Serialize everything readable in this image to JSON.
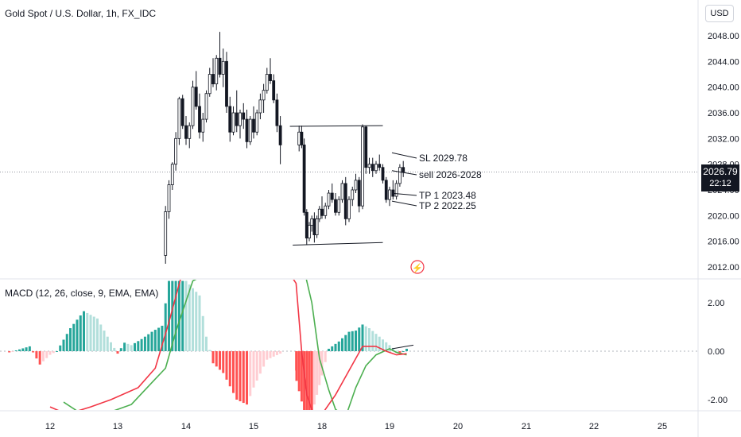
{
  "header": {
    "symbol_title": "Gold Spot / U.S. Dollar, 1h, FX_IDC",
    "currency": "USD",
    "current_price": "2026.79",
    "countdown": "22:12"
  },
  "macd_indicator": {
    "label": "MACD (12, 26, close, 9, EMA, EMA)"
  },
  "chart_data": [
    {
      "type": "candlestick",
      "title": "Gold Spot / U.S. Dollar, 1h, FX_IDC",
      "y_axis_ticks": [
        "2048.00",
        "2044.00",
        "2040.00",
        "2036.00",
        "2032.00",
        "2028.00",
        "2024.00",
        "2020.00",
        "2016.00",
        "2012.00"
      ],
      "x_axis_ticks": [
        "12",
        "13",
        "14",
        "15",
        "18",
        "19",
        "20",
        "21",
        "22",
        "25"
      ],
      "ylim": [
        2010.3,
        2050.3
      ],
      "last_price": 2026.79,
      "annotations": [
        {
          "text": "SL 2029.78",
          "price": 2029.78
        },
        {
          "text": "sell 2026-2028",
          "price": 2027.0
        },
        {
          "text": "TP 1 2023.48",
          "price": 2023.48
        },
        {
          "text": "TP 2 2022.25",
          "price": 2022.25
        }
      ],
      "trendlines": [
        {
          "name": "channel-top",
          "from": {
            "x": 16.1,
            "price": 2033.9
          },
          "to": {
            "x": 18.9,
            "price": 2034.0
          }
        },
        {
          "name": "channel-bottom",
          "from": {
            "x": 16.7,
            "price": 2015.4
          },
          "to": {
            "x": 18.9,
            "price": 2015.8
          }
        }
      ],
      "ohlc_approx": [
        [
          13.7,
          2013.8,
          2021.5,
          2012.5,
          2020.6
        ],
        [
          13.75,
          2020.6,
          2025.5,
          2019.5,
          2024.8
        ],
        [
          13.8,
          2024.8,
          2028.3,
          2024.0,
          2028.0
        ],
        [
          13.85,
          2028.0,
          2033.0,
          2027.0,
          2032.0
        ],
        [
          13.9,
          2032.0,
          2038.5,
          2031.0,
          2038.2
        ],
        [
          13.95,
          2038.2,
          2038.8,
          2033.5,
          2034.0
        ],
        [
          14.0,
          2034.0,
          2035.5,
          2031.0,
          2032.0
        ],
        [
          14.05,
          2032.0,
          2034.5,
          2030.5,
          2034.0
        ],
        [
          14.1,
          2034.0,
          2041.0,
          2033.5,
          2040.0
        ],
        [
          14.15,
          2040.0,
          2042.5,
          2036.5,
          2037.0
        ],
        [
          14.2,
          2037.0,
          2039.0,
          2032.0,
          2033.0
        ],
        [
          14.25,
          2033.0,
          2036.0,
          2031.5,
          2035.0
        ],
        [
          14.3,
          2035.0,
          2039.5,
          2034.5,
          2039.0
        ],
        [
          14.35,
          2039.0,
          2043.0,
          2038.5,
          2042.0
        ],
        [
          14.4,
          2042.0,
          2044.5,
          2040.0,
          2040.5
        ],
        [
          14.45,
          2040.5,
          2045.0,
          2039.5,
          2044.5
        ],
        [
          14.5,
          2044.5,
          2048.6,
          2041.5,
          2042.0
        ],
        [
          14.55,
          2042.0,
          2046.0,
          2040.0,
          2044.0
        ],
        [
          14.6,
          2044.0,
          2045.5,
          2036.0,
          2037.0
        ],
        [
          14.65,
          2037.0,
          2038.5,
          2031.5,
          2033.0
        ],
        [
          14.7,
          2033.0,
          2037.0,
          2032.5,
          2036.0
        ],
        [
          14.75,
          2036.0,
          2039.5,
          2033.0,
          2034.0
        ],
        [
          14.8,
          2034.0,
          2036.5,
          2032.0,
          2036.0
        ],
        [
          14.85,
          2036.0,
          2037.5,
          2033.5,
          2035.0
        ],
        [
          14.9,
          2035.0,
          2036.5,
          2030.5,
          2031.5
        ],
        [
          14.95,
          2031.5,
          2035.5,
          2031.0,
          2035.0
        ],
        [
          15.0,
          2035.0,
          2037.0,
          2032.0,
          2033.0
        ],
        [
          15.05,
          2033.0,
          2036.5,
          2032.5,
          2036.0
        ],
        [
          15.1,
          2036.0,
          2039.0,
          2035.0,
          2038.0
        ],
        [
          15.15,
          2038.0,
          2040.5,
          2036.0,
          2039.5
        ],
        [
          15.2,
          2039.5,
          2043.0,
          2039.0,
          2042.0
        ],
        [
          15.25,
          2042.0,
          2044.5,
          2040.5,
          2041.0
        ],
        [
          15.3,
          2041.0,
          2042.0,
          2037.5,
          2038.0
        ],
        [
          15.35,
          2038.0,
          2039.0,
          2033.0,
          2034.0
        ],
        [
          15.4,
          2034.0,
          2035.5,
          2028.0,
          2031.0
        ],
        [
          17.55,
          2031.0,
          2034.0,
          2030.0,
          2033.0
        ],
        [
          17.6,
          2033.0,
          2034.0,
          2030.5,
          2031.0
        ],
        [
          17.65,
          2031.0,
          2032.0,
          2020.0,
          2020.5
        ],
        [
          17.7,
          2020.5,
          2021.0,
          2015.4,
          2016.5
        ],
        [
          17.75,
          2016.5,
          2019.0,
          2016.0,
          2018.5
        ],
        [
          17.8,
          2018.5,
          2020.0,
          2017.5,
          2019.5
        ],
        [
          17.85,
          2019.5,
          2020.5,
          2015.8,
          2017.0
        ],
        [
          17.9,
          2017.0,
          2020.0,
          2016.5,
          2019.5
        ],
        [
          17.95,
          2019.5,
          2021.5,
          2019.0,
          2021.0
        ],
        [
          18.0,
          2021.0,
          2023.0,
          2019.5,
          2020.0
        ],
        [
          18.05,
          2020.0,
          2022.0,
          2019.5,
          2021.5
        ],
        [
          18.1,
          2021.5,
          2024.0,
          2021.0,
          2023.5
        ],
        [
          18.15,
          2023.5,
          2025.0,
          2022.0,
          2022.5
        ],
        [
          18.2,
          2022.5,
          2023.5,
          2020.0,
          2020.5
        ],
        [
          18.25,
          2020.5,
          2023.0,
          2020.0,
          2022.5
        ],
        [
          18.3,
          2022.5,
          2025.5,
          2022.0,
          2025.0
        ],
        [
          18.35,
          2025.0,
          2026.0,
          2018.5,
          2019.5
        ],
        [
          18.4,
          2019.5,
          2023.0,
          2019.0,
          2022.5
        ],
        [
          18.45,
          2022.5,
          2024.5,
          2021.5,
          2024.0
        ],
        [
          18.5,
          2024.0,
          2026.5,
          2023.5,
          2025.5
        ],
        [
          18.55,
          2025.5,
          2026.0,
          2020.5,
          2021.5
        ],
        [
          18.6,
          2021.5,
          2034.2,
          2021.0,
          2033.8
        ],
        [
          18.65,
          2033.8,
          2034.0,
          2026.5,
          2027.5
        ],
        [
          18.7,
          2027.5,
          2029.0,
          2026.5,
          2028.0
        ],
        [
          18.75,
          2028.0,
          2029.0,
          2026.0,
          2027.0
        ],
        [
          18.8,
          2027.0,
          2028.5,
          2026.5,
          2028.0
        ],
        [
          18.85,
          2028.0,
          2029.5,
          2027.0,
          2027.5
        ],
        [
          18.9,
          2027.5,
          2028.0,
          2025.0,
          2025.5
        ],
        [
          18.95,
          2025.5,
          2026.0,
          2022.0,
          2022.5
        ],
        [
          19.0,
          2022.5,
          2024.5,
          2021.5,
          2024.0
        ],
        [
          19.05,
          2024.0,
          2025.5,
          2022.5,
          2023.0
        ],
        [
          19.1,
          2023.0,
          2025.5,
          2022.5,
          2025.0
        ],
        [
          19.15,
          2025.0,
          2028.0,
          2024.5,
          2027.5
        ],
        [
          19.2,
          2027.5,
          2028.5,
          2026.0,
          2026.79
        ]
      ]
    },
    {
      "type": "macd",
      "label": "MACD (12, 26, close, 9, EMA, EMA)",
      "y_axis_ticks": [
        "2.00",
        "0.00",
        "-2.00"
      ],
      "ylim": [
        -2.6,
        2.9
      ],
      "zero_line": 0,
      "colors": {
        "macd_line": "#f23645",
        "signal_line": "#4caf50",
        "hist_up_strong": "#26a69a",
        "hist_up_weak": "#b2dfdb",
        "hist_down_strong": "#ff5252",
        "hist_down_weak": "#ffcdd2"
      },
      "histogram_key_points": [
        [
          11.4,
          -0.05
        ],
        [
          11.7,
          0.2
        ],
        [
          11.85,
          -0.55
        ],
        [
          12.0,
          -0.15
        ],
        [
          12.1,
          0.0
        ],
        [
          12.3,
          0.95
        ],
        [
          12.5,
          1.65
        ],
        [
          12.7,
          1.35
        ],
        [
          12.85,
          0.6
        ],
        [
          13.0,
          -0.1
        ],
        [
          13.1,
          0.35
        ],
        [
          13.2,
          0.25
        ],
        [
          13.35,
          0.5
        ],
        [
          13.5,
          0.8
        ],
        [
          13.65,
          1.05
        ],
        [
          13.75,
          2.9
        ],
        [
          14.0,
          2.9
        ],
        [
          14.2,
          2.3
        ],
        [
          14.3,
          0.6
        ],
        [
          14.4,
          -0.5
        ],
        [
          14.55,
          -0.9
        ],
        [
          14.75,
          -2.0
        ],
        [
          14.9,
          -2.2
        ],
        [
          15.0,
          -1.5
        ],
        [
          15.2,
          -0.35
        ],
        [
          15.4,
          -0.1
        ],
        [
          17.45,
          -0.8
        ],
        [
          17.65,
          -2.5
        ],
        [
          17.8,
          -2.6
        ],
        [
          18.0,
          -1.0
        ],
        [
          18.1,
          0.1
        ],
        [
          18.25,
          0.4
        ],
        [
          18.4,
          0.8
        ],
        [
          18.5,
          0.85
        ],
        [
          18.6,
          1.1
        ],
        [
          18.7,
          0.95
        ],
        [
          18.85,
          0.6
        ],
        [
          19.0,
          0.25
        ],
        [
          19.15,
          -0.1
        ],
        [
          19.25,
          0.1
        ]
      ],
      "macd_line_key_points": [
        [
          12.0,
          -2.3
        ],
        [
          12.25,
          -2.6
        ],
        [
          12.6,
          -2.3
        ],
        [
          12.9,
          -2.0
        ],
        [
          13.3,
          -1.5
        ],
        [
          13.55,
          -0.7
        ],
        [
          13.75,
          1.2
        ],
        [
          13.95,
          3.3
        ],
        [
          15.0,
          4.0
        ],
        [
          15.3,
          4.2
        ],
        [
          17.4,
          2.8
        ],
        [
          17.6,
          0.0
        ],
        [
          17.7,
          -1.8
        ],
        [
          17.85,
          -2.7
        ],
        [
          18.0,
          -2.6
        ],
        [
          18.2,
          -1.8
        ],
        [
          18.4,
          -0.8
        ],
        [
          18.6,
          0.2
        ],
        [
          18.8,
          0.2
        ],
        [
          18.95,
          0.0
        ],
        [
          19.1,
          -0.15
        ],
        [
          19.25,
          -0.1
        ]
      ],
      "signal_line_key_points": [
        [
          12.2,
          -2.1
        ],
        [
          12.5,
          -2.65
        ],
        [
          12.8,
          -2.6
        ],
        [
          13.2,
          -2.2
        ],
        [
          13.5,
          -1.3
        ],
        [
          13.7,
          -0.7
        ],
        [
          13.85,
          0.8
        ],
        [
          14.1,
          2.9
        ],
        [
          15.0,
          4.2
        ],
        [
          17.6,
          3.8
        ],
        [
          17.8,
          2.0
        ],
        [
          17.95,
          -0.3
        ],
        [
          18.1,
          -1.6
        ],
        [
          18.2,
          -2.4
        ],
        [
          18.35,
          -2.7
        ],
        [
          18.5,
          -1.5
        ],
        [
          18.65,
          -0.6
        ],
        [
          18.8,
          -0.15
        ],
        [
          19.0,
          0.1
        ],
        [
          19.1,
          -0.05
        ],
        [
          19.25,
          -0.15
        ]
      ]
    }
  ]
}
